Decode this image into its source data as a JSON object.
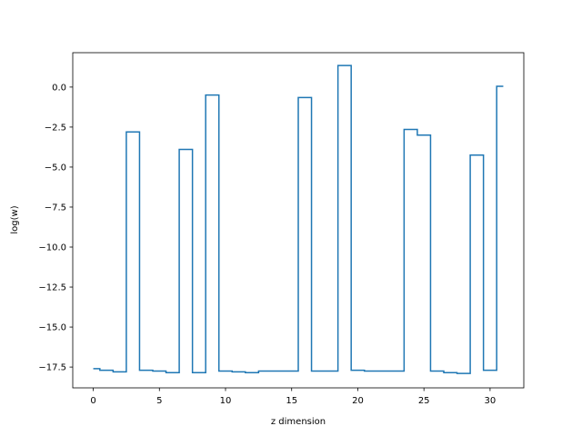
{
  "chart_data": {
    "type": "line",
    "step": "mid",
    "title": "",
    "xlabel": "z dimension",
    "ylabel": "log(w)",
    "xlim": [
      -1.55,
      32.55
    ],
    "ylim": [
      -18.8,
      2.15
    ],
    "xticks": [
      0,
      5,
      10,
      15,
      20,
      25,
      30
    ],
    "xtick_labels": [
      "0",
      "5",
      "10",
      "15",
      "20",
      "25",
      "30"
    ],
    "yticks": [
      0.0,
      -2.5,
      -5.0,
      -7.5,
      -10.0,
      -12.5,
      -15.0,
      -17.5
    ],
    "ytick_labels": [
      "0.0",
      "−2.5",
      "−5.0",
      "−7.5",
      "−10.0",
      "−12.5",
      "−15.0",
      "−17.5"
    ],
    "grid": false,
    "color": "#1f77b4",
    "series": [
      {
        "x": [
          0,
          1,
          2,
          3,
          4,
          5,
          6,
          7,
          8,
          9,
          10,
          11,
          12,
          13,
          14,
          15,
          16,
          17,
          18,
          19,
          20,
          21,
          22,
          23,
          24,
          25,
          26,
          27,
          28,
          29,
          30,
          31
        ],
        "y": [
          -17.6,
          -17.7,
          -17.8,
          -2.8,
          -17.7,
          -17.75,
          -17.85,
          -3.9,
          -17.85,
          -0.5,
          -17.75,
          -17.8,
          -17.85,
          -17.75,
          -17.75,
          -17.75,
          -0.65,
          -17.75,
          -17.75,
          1.35,
          -17.7,
          -17.75,
          -17.75,
          -17.75,
          -2.65,
          -3.0,
          -17.75,
          -17.85,
          -17.9,
          -4.25,
          -17.7,
          0.05
        ]
      }
    ]
  }
}
